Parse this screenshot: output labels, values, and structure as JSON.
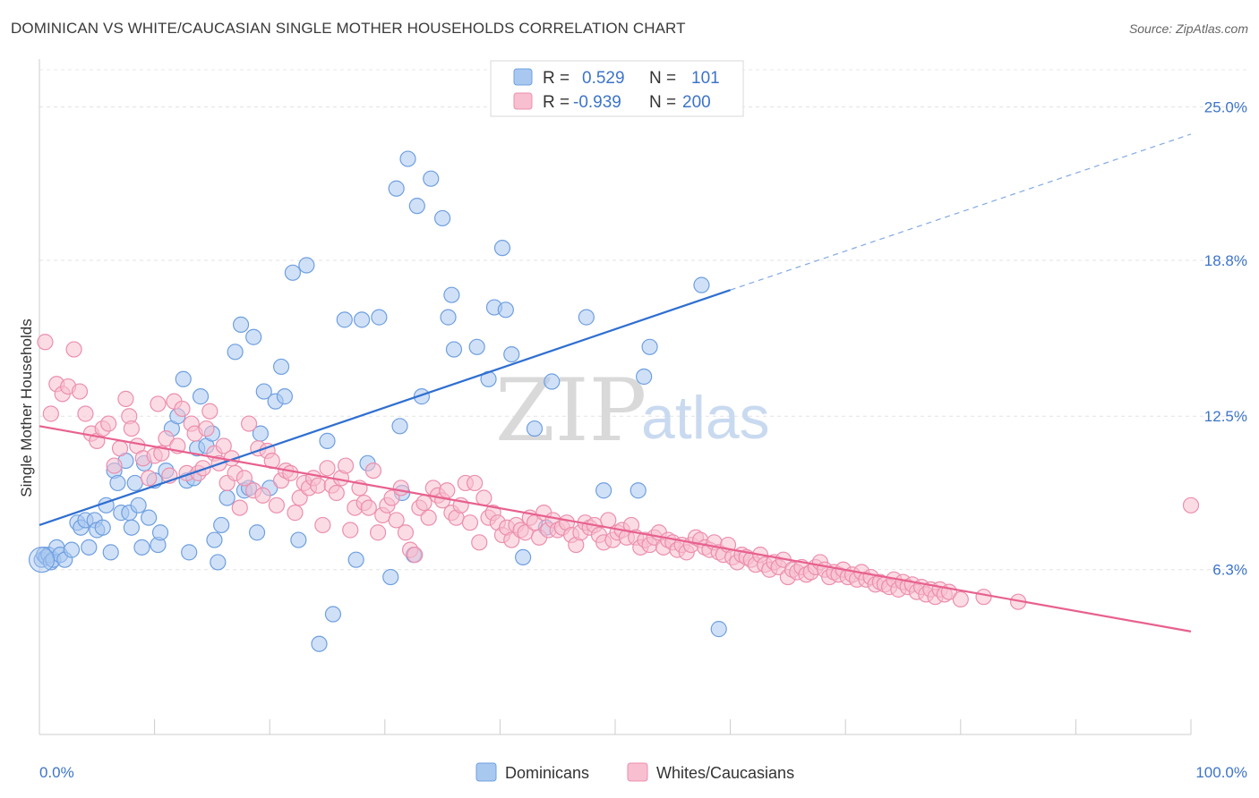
{
  "title": "DOMINICAN VS WHITE/CAUCASIAN SINGLE MOTHER HOUSEHOLDS CORRELATION CHART",
  "source": "Source: ZipAtlas.com",
  "watermark": {
    "zip": "ZIP",
    "atlas": "atlas"
  },
  "legend": {
    "rows": [
      {
        "r_label": "R =",
        "r_value": "0.529",
        "n_label": "N =",
        "n_value": "101",
        "color": "#a9c8f0",
        "stroke": "#6f9fe0"
      },
      {
        "r_label": "R =",
        "r_value": "-0.939",
        "n_label": "N =",
        "n_value": "200",
        "color": "#f8bfd0",
        "stroke": "#ec8fad"
      }
    ]
  },
  "bottom_legend": [
    {
      "label": "Dominicans",
      "color": "#a9c8f0",
      "stroke": "#6f9fe0"
    },
    {
      "label": "Whites/Caucasians",
      "color": "#f8bfd0",
      "stroke": "#ec8fad"
    }
  ],
  "chart_data": {
    "type": "scatter",
    "title": "DOMINICAN VS WHITE/CAUCASIAN SINGLE MOTHER HOUSEHOLDS CORRELATION CHART",
    "xlabel": "",
    "ylabel": "Single Mother Households",
    "xlim": [
      0,
      100
    ],
    "ylim": [
      0,
      26.5
    ],
    "x_tick_labels": [
      "0.0%",
      "100.0%"
    ],
    "y_ticks": [
      6.3,
      12.5,
      18.8,
      25.0
    ],
    "y_tick_labels": [
      "6.3%",
      "12.5%",
      "18.8%",
      "25.0%"
    ],
    "grid": true,
    "series": [
      {
        "name": "Dominicans",
        "color": "#a9c8f0",
        "stroke": "#6f9fe0",
        "trend": {
          "x": [
            0,
            60
          ],
          "y": [
            8.1,
            17.6
          ],
          "extended_to": [
            100,
            23.9
          ],
          "color": "#2f6fd1"
        },
        "points": [
          [
            0.2,
            6.7
          ],
          [
            0.4,
            6.9
          ],
          [
            0.6,
            6.8
          ],
          [
            0.8,
            6.9
          ],
          [
            1.0,
            6.6
          ],
          [
            1.2,
            6.7
          ],
          [
            1.5,
            7.2
          ],
          [
            1.8,
            6.9
          ],
          [
            2.2,
            6.7
          ],
          [
            2.8,
            7.1
          ],
          [
            3.3,
            8.2
          ],
          [
            3.6,
            8.0
          ],
          [
            4.0,
            8.3
          ],
          [
            4.3,
            7.2
          ],
          [
            4.8,
            8.3
          ],
          [
            5.0,
            7.9
          ],
          [
            5.5,
            8.0
          ],
          [
            5.8,
            8.9
          ],
          [
            6.2,
            7.0
          ],
          [
            6.5,
            10.3
          ],
          [
            6.8,
            9.8
          ],
          [
            7.1,
            8.6
          ],
          [
            7.5,
            10.7
          ],
          [
            7.8,
            8.6
          ],
          [
            8.0,
            8.0
          ],
          [
            8.3,
            9.8
          ],
          [
            8.6,
            8.9
          ],
          [
            8.9,
            7.2
          ],
          [
            9.1,
            10.6
          ],
          [
            9.5,
            8.4
          ],
          [
            10.0,
            9.9
          ],
          [
            10.3,
            7.3
          ],
          [
            10.5,
            7.8
          ],
          [
            11.0,
            10.3
          ],
          [
            11.5,
            12.0
          ],
          [
            12.0,
            12.5
          ],
          [
            12.5,
            14.0
          ],
          [
            12.8,
            9.9
          ],
          [
            13.0,
            7.0
          ],
          [
            13.4,
            10.0
          ],
          [
            13.7,
            11.2
          ],
          [
            14.0,
            13.3
          ],
          [
            14.5,
            11.3
          ],
          [
            15.0,
            11.8
          ],
          [
            15.2,
            7.5
          ],
          [
            15.5,
            6.6
          ],
          [
            15.8,
            8.1
          ],
          [
            16.3,
            9.2
          ],
          [
            17.0,
            15.1
          ],
          [
            17.5,
            16.2
          ],
          [
            17.8,
            9.5
          ],
          [
            18.2,
            9.6
          ],
          [
            18.6,
            15.7
          ],
          [
            18.9,
            7.8
          ],
          [
            19.2,
            11.8
          ],
          [
            19.5,
            13.5
          ],
          [
            20.0,
            9.6
          ],
          [
            20.5,
            13.1
          ],
          [
            21.0,
            14.5
          ],
          [
            21.3,
            13.3
          ],
          [
            22.0,
            18.3
          ],
          [
            22.5,
            7.5
          ],
          [
            23.2,
            18.6
          ],
          [
            24.3,
            3.3
          ],
          [
            25.5,
            4.5
          ],
          [
            25.0,
            11.5
          ],
          [
            26.5,
            16.4
          ],
          [
            28.0,
            16.4
          ],
          [
            27.5,
            6.7
          ],
          [
            28.5,
            10.6
          ],
          [
            29.5,
            16.5
          ],
          [
            30.5,
            6.0
          ],
          [
            31.0,
            21.7
          ],
          [
            31.3,
            12.1
          ],
          [
            31.5,
            9.4
          ],
          [
            32.0,
            22.9
          ],
          [
            32.5,
            6.9
          ],
          [
            32.8,
            21.0
          ],
          [
            33.2,
            13.3
          ],
          [
            34.0,
            22.1
          ],
          [
            35.0,
            20.5
          ],
          [
            35.5,
            16.5
          ],
          [
            35.8,
            17.4
          ],
          [
            36.0,
            15.2
          ],
          [
            38.0,
            15.3
          ],
          [
            39.0,
            14.0
          ],
          [
            39.5,
            16.9
          ],
          [
            40.2,
            19.3
          ],
          [
            40.5,
            16.8
          ],
          [
            41.0,
            15.0
          ],
          [
            42.0,
            6.8
          ],
          [
            43.0,
            12.0
          ],
          [
            44.0,
            8.0
          ],
          [
            44.5,
            13.9
          ],
          [
            47.5,
            16.5
          ],
          [
            49.0,
            9.5
          ],
          [
            52.0,
            9.5
          ],
          [
            52.5,
            14.1
          ],
          [
            53.0,
            15.3
          ],
          [
            57.5,
            17.8
          ],
          [
            59.0,
            3.9
          ]
        ]
      },
      {
        "name": "Whites/Caucasians",
        "color": "#f8bfd0",
        "stroke": "#ec8fad",
        "trend": {
          "x": [
            0,
            100
          ],
          "y": [
            12.1,
            3.8
          ],
          "color": "#e8608e"
        },
        "points": [
          [
            0.5,
            15.5
          ],
          [
            1.0,
            12.6
          ],
          [
            1.5,
            13.8
          ],
          [
            2.0,
            13.4
          ],
          [
            2.5,
            13.7
          ],
          [
            3.0,
            15.2
          ],
          [
            3.5,
            13.5
          ],
          [
            4.0,
            12.6
          ],
          [
            4.5,
            11.8
          ],
          [
            5.0,
            11.5
          ],
          [
            5.5,
            12.0
          ],
          [
            6.0,
            12.2
          ],
          [
            6.5,
            10.5
          ],
          [
            7.0,
            11.2
          ],
          [
            7.5,
            13.2
          ],
          [
            7.8,
            12.5
          ],
          [
            8.0,
            12.0
          ],
          [
            8.5,
            11.3
          ],
          [
            9.0,
            10.8
          ],
          [
            9.5,
            10.0
          ],
          [
            10.0,
            10.9
          ],
          [
            10.3,
            13.0
          ],
          [
            10.6,
            11.0
          ],
          [
            11.0,
            11.6
          ],
          [
            11.3,
            10.1
          ],
          [
            11.7,
            13.1
          ],
          [
            12.0,
            11.3
          ],
          [
            12.4,
            12.8
          ],
          [
            12.8,
            10.2
          ],
          [
            13.2,
            12.2
          ],
          [
            13.5,
            11.8
          ],
          [
            13.8,
            10.2
          ],
          [
            14.2,
            10.4
          ],
          [
            14.5,
            12.0
          ],
          [
            14.8,
            12.7
          ],
          [
            15.2,
            11.0
          ],
          [
            15.6,
            10.6
          ],
          [
            16.0,
            11.3
          ],
          [
            16.3,
            9.8
          ],
          [
            16.7,
            10.8
          ],
          [
            17.0,
            10.2
          ],
          [
            17.4,
            8.8
          ],
          [
            17.8,
            10.0
          ],
          [
            18.2,
            12.2
          ],
          [
            18.6,
            9.5
          ],
          [
            19.0,
            11.2
          ],
          [
            19.4,
            9.3
          ],
          [
            19.8,
            11.1
          ],
          [
            20.2,
            10.7
          ],
          [
            20.6,
            8.9
          ],
          [
            21.0,
            9.9
          ],
          [
            21.4,
            10.3
          ],
          [
            21.8,
            10.2
          ],
          [
            22.2,
            8.6
          ],
          [
            22.6,
            9.2
          ],
          [
            23.0,
            9.8
          ],
          [
            23.4,
            9.6
          ],
          [
            23.8,
            10.0
          ],
          [
            24.2,
            9.7
          ],
          [
            24.6,
            8.1
          ],
          [
            25.0,
            10.4
          ],
          [
            25.4,
            9.7
          ],
          [
            25.8,
            9.4
          ],
          [
            26.2,
            10.0
          ],
          [
            26.6,
            10.5
          ],
          [
            27.0,
            7.9
          ],
          [
            27.4,
            8.8
          ],
          [
            27.8,
            9.6
          ],
          [
            28.2,
            9.0
          ],
          [
            28.6,
            8.8
          ],
          [
            29.0,
            10.3
          ],
          [
            29.4,
            7.8
          ],
          [
            29.8,
            8.5
          ],
          [
            30.2,
            8.9
          ],
          [
            30.6,
            9.2
          ],
          [
            31.0,
            8.3
          ],
          [
            31.4,
            9.6
          ],
          [
            31.8,
            7.8
          ],
          [
            32.2,
            7.1
          ],
          [
            32.6,
            6.9
          ],
          [
            33.0,
            8.8
          ],
          [
            33.4,
            9.0
          ],
          [
            33.8,
            8.4
          ],
          [
            34.2,
            9.6
          ],
          [
            34.6,
            9.3
          ],
          [
            35.0,
            9.1
          ],
          [
            35.4,
            9.5
          ],
          [
            35.8,
            8.6
          ],
          [
            36.2,
            8.4
          ],
          [
            36.6,
            8.9
          ],
          [
            37.0,
            9.8
          ],
          [
            37.4,
            8.2
          ],
          [
            37.8,
            9.8
          ],
          [
            38.2,
            7.4
          ],
          [
            38.6,
            9.2
          ],
          [
            39.0,
            8.4
          ],
          [
            39.4,
            8.6
          ],
          [
            39.8,
            8.2
          ],
          [
            40.2,
            7.7
          ],
          [
            40.6,
            8.0
          ],
          [
            41.0,
            7.5
          ],
          [
            41.4,
            8.1
          ],
          [
            41.8,
            7.9
          ],
          [
            42.2,
            7.8
          ],
          [
            42.6,
            8.4
          ],
          [
            43.0,
            8.2
          ],
          [
            43.4,
            7.6
          ],
          [
            43.8,
            8.6
          ],
          [
            44.2,
            7.9
          ],
          [
            44.6,
            8.3
          ],
          [
            45.0,
            7.9
          ],
          [
            45.4,
            8.0
          ],
          [
            45.8,
            8.2
          ],
          [
            46.2,
            7.7
          ],
          [
            46.6,
            7.3
          ],
          [
            47.0,
            7.8
          ],
          [
            47.4,
            8.2
          ],
          [
            47.8,
            8.0
          ],
          [
            48.2,
            8.1
          ],
          [
            48.6,
            7.7
          ],
          [
            49.0,
            7.4
          ],
          [
            49.4,
            8.3
          ],
          [
            49.8,
            7.5
          ],
          [
            50.2,
            7.8
          ],
          [
            50.6,
            7.9
          ],
          [
            51.0,
            7.6
          ],
          [
            51.4,
            8.1
          ],
          [
            51.8,
            7.6
          ],
          [
            52.2,
            7.2
          ],
          [
            52.6,
            7.5
          ],
          [
            53.0,
            7.3
          ],
          [
            53.4,
            7.6
          ],
          [
            53.8,
            7.8
          ],
          [
            54.2,
            7.2
          ],
          [
            54.6,
            7.5
          ],
          [
            55.0,
            7.4
          ],
          [
            55.4,
            7.1
          ],
          [
            55.8,
            7.3
          ],
          [
            56.2,
            7.0
          ],
          [
            56.6,
            7.3
          ],
          [
            57.0,
            7.6
          ],
          [
            57.4,
            7.5
          ],
          [
            57.8,
            7.2
          ],
          [
            58.2,
            7.1
          ],
          [
            58.6,
            7.4
          ],
          [
            59.0,
            7.0
          ],
          [
            59.4,
            6.9
          ],
          [
            59.8,
            7.3
          ],
          [
            60.2,
            6.8
          ],
          [
            60.6,
            6.6
          ],
          [
            61.0,
            6.9
          ],
          [
            61.4,
            6.8
          ],
          [
            61.8,
            6.7
          ],
          [
            62.2,
            6.5
          ],
          [
            62.6,
            6.9
          ],
          [
            63.0,
            6.5
          ],
          [
            63.4,
            6.3
          ],
          [
            63.8,
            6.6
          ],
          [
            64.2,
            6.4
          ],
          [
            64.6,
            6.7
          ],
          [
            65.0,
            6.0
          ],
          [
            65.4,
            6.3
          ],
          [
            65.8,
            6.2
          ],
          [
            66.2,
            6.4
          ],
          [
            66.6,
            6.1
          ],
          [
            67.0,
            6.2
          ],
          [
            67.4,
            6.4
          ],
          [
            67.8,
            6.6
          ],
          [
            68.2,
            6.3
          ],
          [
            68.6,
            6.0
          ],
          [
            69.0,
            6.2
          ],
          [
            69.4,
            6.1
          ],
          [
            69.8,
            6.3
          ],
          [
            70.2,
            6.0
          ],
          [
            70.6,
            6.1
          ],
          [
            71.0,
            5.9
          ],
          [
            71.4,
            6.2
          ],
          [
            71.8,
            5.9
          ],
          [
            72.2,
            6.0
          ],
          [
            72.6,
            5.7
          ],
          [
            73.0,
            5.8
          ],
          [
            73.4,
            5.7
          ],
          [
            73.8,
            5.6
          ],
          [
            74.2,
            5.9
          ],
          [
            74.6,
            5.5
          ],
          [
            75.0,
            5.8
          ],
          [
            75.4,
            5.6
          ],
          [
            75.8,
            5.7
          ],
          [
            76.2,
            5.4
          ],
          [
            76.6,
            5.6
          ],
          [
            77.0,
            5.3
          ],
          [
            77.4,
            5.5
          ],
          [
            77.8,
            5.2
          ],
          [
            78.2,
            5.5
          ],
          [
            78.6,
            5.3
          ],
          [
            79.0,
            5.4
          ],
          [
            80.0,
            5.1
          ],
          [
            82.0,
            5.2
          ],
          [
            85.0,
            5.0
          ],
          [
            100.0,
            8.9
          ]
        ]
      }
    ]
  }
}
